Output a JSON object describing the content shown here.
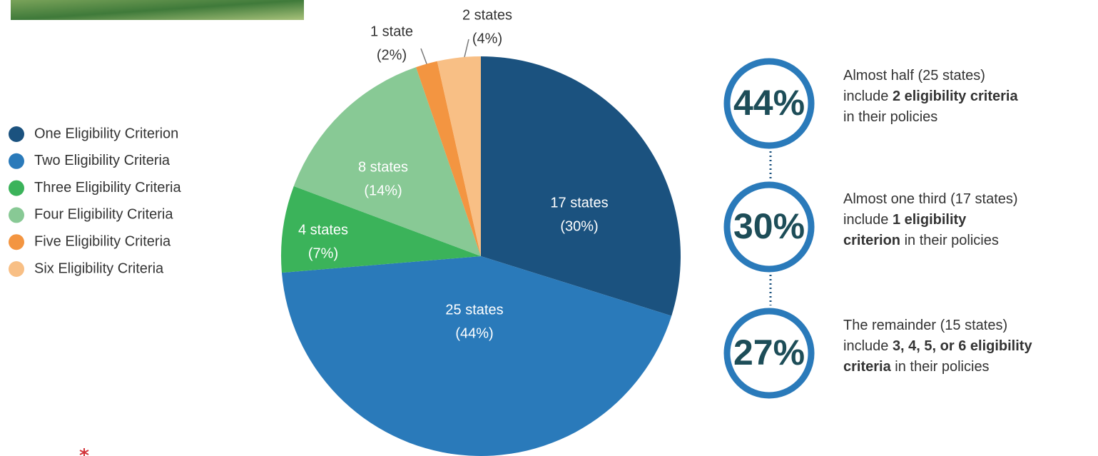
{
  "chart_data": {
    "type": "pie",
    "categories": [
      "One Eligibility Criterion",
      "Two Eligibility Criteria",
      "Three Eligibility Criteria",
      "Four Eligibility Criteria",
      "Five Eligibility Criteria",
      "Six Eligibility Criteria"
    ],
    "values": [
      17,
      25,
      4,
      8,
      1,
      2
    ],
    "value_labels": [
      "17 states",
      "25 states",
      "4 states",
      "8 states",
      "1 state",
      "2 states"
    ],
    "percent_labels": [
      "(30%)",
      "(44%)",
      "(7%)",
      "(14%)",
      "(2%)",
      "(4%)"
    ],
    "colors": [
      "#1b527f",
      "#2a7aba",
      "#3bb35a",
      "#88c995",
      "#f39541",
      "#f8bf85"
    ]
  },
  "callouts": [
    {
      "stat": "44%",
      "lines": [
        [
          {
            "text": "Almost half (25 states)"
          }
        ],
        [
          {
            "text": "include "
          },
          {
            "text": "2 eligibility criteria",
            "bold": true
          }
        ],
        [
          {
            "text": "in their policies"
          }
        ]
      ]
    },
    {
      "stat": "30%",
      "lines": [
        [
          {
            "text": "Almost one third (17 states)"
          }
        ],
        [
          {
            "text": "include "
          },
          {
            "text": "1 eligibility",
            "bold": true
          }
        ],
        [
          {
            "text": "criterion",
            "bold": true
          },
          {
            "text": " in their policies"
          }
        ]
      ]
    },
    {
      "stat": "27%",
      "lines": [
        [
          {
            "text": "The remainder (15 states)"
          }
        ],
        [
          {
            "text": "include "
          },
          {
            "text": "3, 4, 5, or 6 eligibility",
            "bold": true
          }
        ],
        [
          {
            "text": "criteria",
            "bold": true
          },
          {
            "text": " in their policies"
          }
        ]
      ]
    }
  ]
}
